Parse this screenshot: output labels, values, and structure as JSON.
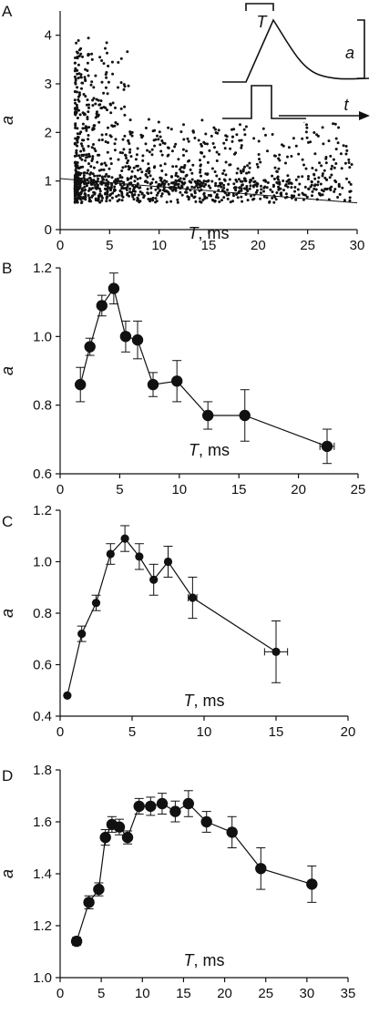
{
  "chart_data": [
    {
      "panel": "A",
      "type": "scatter",
      "xlabel_var": "T",
      "xlabel_unit": ", ms",
      "ylabel": "a",
      "xlim": [
        0,
        30
      ],
      "ylim": [
        0,
        4.5
      ],
      "xticks": [
        "0",
        "5",
        "10",
        "15",
        "20",
        "25",
        "30"
      ],
      "yticks": [
        "0",
        "1",
        "2",
        "3",
        "4"
      ],
      "trendline": [
        [
          0,
          1.05
        ],
        [
          30,
          0.55
        ]
      ],
      "inset_labels": {
        "duration": "T",
        "amplitude": "a",
        "time": "t"
      }
    },
    {
      "panel": "B",
      "type": "line",
      "xlabel_var": "T",
      "xlabel_unit": ", ms",
      "ylabel": "a",
      "xlim": [
        0,
        25
      ],
      "ylim": [
        0.6,
        1.2
      ],
      "xticks": [
        "0",
        "5",
        "10",
        "15",
        "20",
        "25"
      ],
      "yticks": [
        "0.6",
        "0.8",
        "1.0",
        "1.2"
      ],
      "x": [
        1.7,
        2.5,
        3.5,
        4.5,
        5.5,
        6.5,
        7.8,
        9.8,
        12.4,
        15.5,
        22.4
      ],
      "y": [
        0.86,
        0.97,
        1.09,
        1.14,
        1.0,
        0.99,
        0.86,
        0.87,
        0.77,
        0.77,
        0.68
      ],
      "yerr": [
        0.05,
        0.025,
        0.03,
        0.045,
        0.045,
        0.055,
        0.035,
        0.06,
        0.04,
        0.075,
        0.05
      ],
      "xerr": [
        0,
        0,
        0,
        0,
        0,
        0,
        0,
        0,
        0,
        0,
        0.6
      ]
    },
    {
      "panel": "C",
      "type": "line",
      "xlabel_var": "T",
      "xlabel_unit": ", ms",
      "ylabel": "a",
      "xlim": [
        0,
        20
      ],
      "ylim": [
        0.4,
        1.2
      ],
      "xticks": [
        "0",
        "5",
        "10",
        "15",
        "20"
      ],
      "yticks": [
        "0.4",
        "0.6",
        "0.8",
        "1.0",
        "1.2"
      ],
      "x": [
        0.5,
        1.5,
        2.5,
        3.5,
        4.5,
        5.5,
        6.5,
        7.5,
        9.2,
        15.0
      ],
      "y": [
        0.48,
        0.72,
        0.84,
        1.03,
        1.09,
        1.02,
        0.93,
        1.0,
        0.86,
        0.65
      ],
      "yerr": [
        0,
        0.03,
        0.03,
        0.04,
        0.05,
        0.05,
        0.06,
        0.06,
        0.08,
        0.12
      ],
      "xerr": [
        0,
        0,
        0,
        0,
        0,
        0,
        0,
        0,
        0.3,
        0.8
      ]
    },
    {
      "panel": "D",
      "type": "line",
      "xlabel_var": "T",
      "xlabel_unit": ", ms",
      "ylabel": "a",
      "xlim": [
        0,
        35
      ],
      "ylim": [
        1.0,
        1.8
      ],
      "xticks": [
        "0",
        "5",
        "10",
        "15",
        "20",
        "25",
        "30",
        "35"
      ],
      "yticks": [
        "1.0",
        "1.2",
        "1.4",
        "1.6",
        "1.8"
      ],
      "x": [
        2.0,
        3.5,
        4.7,
        5.5,
        6.3,
        7.2,
        8.2,
        9.6,
        11.0,
        12.4,
        14.0,
        15.6,
        17.8,
        20.9,
        24.4,
        30.6
      ],
      "y": [
        1.14,
        1.29,
        1.34,
        1.54,
        1.59,
        1.58,
        1.54,
        1.66,
        1.66,
        1.67,
        1.64,
        1.67,
        1.6,
        1.56,
        1.42,
        1.36
      ],
      "yerr": [
        0.015,
        0.025,
        0.025,
        0.03,
        0.03,
        0.03,
        0.025,
        0.03,
        0.035,
        0.04,
        0.04,
        0.05,
        0.04,
        0.06,
        0.08,
        0.07
      ],
      "xerr": [
        0,
        0,
        0,
        0,
        0,
        0,
        0,
        0,
        0,
        0,
        0,
        0,
        0,
        0,
        0,
        0
      ]
    }
  ]
}
